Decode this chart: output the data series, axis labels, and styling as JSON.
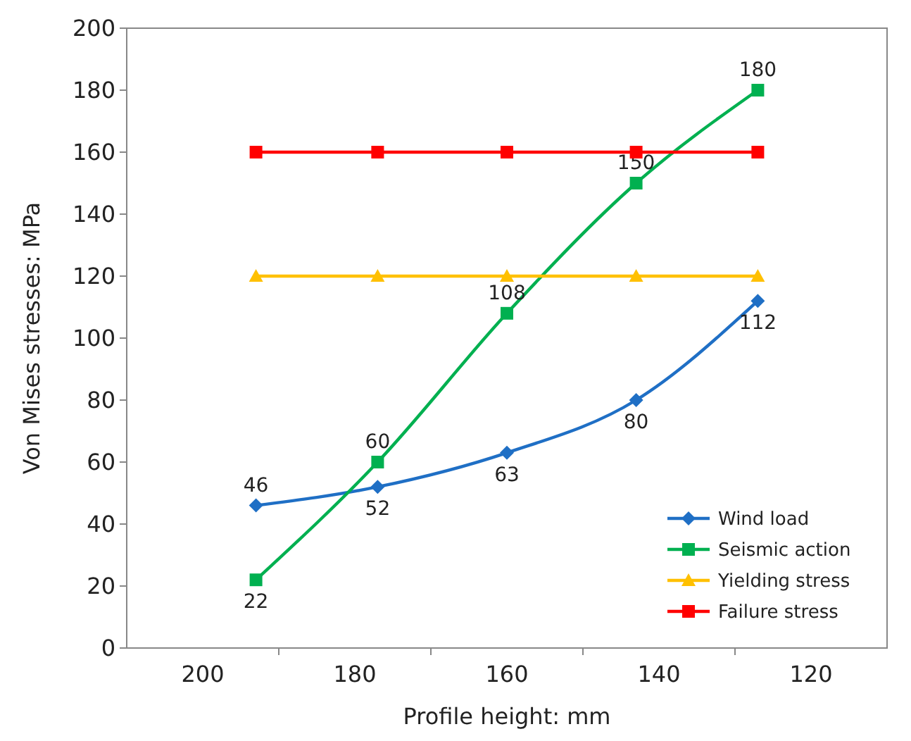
{
  "chart_data": {
    "type": "line",
    "xlabel": "Profile height: mm",
    "ylabel": "Von Mises stresses: MPa",
    "x": [
      193,
      177,
      160,
      143,
      127
    ],
    "xlim": [
      210,
      110
    ],
    "xticks": [
      {
        "value": 200,
        "label": "200"
      },
      {
        "value": 190,
        "label": null
      },
      {
        "value": 180,
        "label": "180"
      },
      {
        "value": 170,
        "label": null
      },
      {
        "value": 160,
        "label": "160"
      },
      {
        "value": 150,
        "label": null
      },
      {
        "value": 140,
        "label": "140"
      },
      {
        "value": 130,
        "label": null
      },
      {
        "value": 120,
        "label": "120"
      }
    ],
    "ylim": [
      0,
      200
    ],
    "yticks": [
      0,
      20,
      40,
      60,
      80,
      100,
      120,
      140,
      160,
      180,
      200
    ],
    "grid": false,
    "legend": "bottom right",
    "line_style": "solid",
    "series": [
      {
        "name": "Wind load",
        "color": "#1f6fc5",
        "marker": "diamond",
        "values": [
          46,
          52,
          63,
          80,
          112
        ],
        "value_labels": [
          "46",
          "52",
          "63",
          "80",
          "112"
        ]
      },
      {
        "name": "Seismic action",
        "color": "#00b050",
        "marker": "square",
        "values": [
          22,
          60,
          108,
          150,
          180
        ],
        "value_labels": [
          "22",
          "60",
          "108",
          "150",
          "180"
        ]
      },
      {
        "name": "Yielding stress",
        "color": "#ffc000",
        "marker": "triangle",
        "values": [
          120,
          120,
          120,
          120,
          120
        ]
      },
      {
        "name": "Failure stress",
        "color": "#ff0000",
        "marker": "square",
        "values": [
          160,
          160,
          160,
          160,
          160
        ]
      }
    ]
  }
}
